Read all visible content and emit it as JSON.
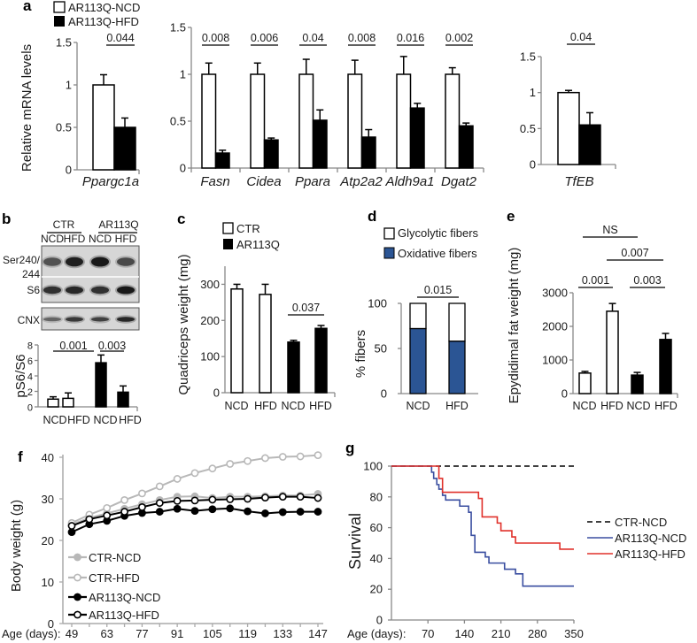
{
  "panel_labels": [
    "a",
    "b",
    "c",
    "d",
    "e",
    "f",
    "g"
  ],
  "blot": {
    "row_labels": [
      "Ser240/",
      "244",
      "S6",
      "CNX"
    ],
    "lane_labels": [
      "NCD",
      "HFD",
      "NCD",
      "HFD"
    ]
  },
  "chart_data": [
    {
      "panel": "a",
      "type": "bar",
      "ylabel": "Relative mRNA levels",
      "categories": [
        "Ppargc1a"
      ],
      "series": [
        {
          "name": "AR113Q-NCD",
          "fill": "#ffffff",
          "values": [
            1.0
          ],
          "errors": [
            0.12
          ]
        },
        {
          "name": "AR113Q-HFD",
          "fill": "#000000",
          "values": [
            0.5
          ],
          "errors": [
            0.11
          ]
        }
      ],
      "pvalues": [
        {
          "label": "0.044",
          "between": [
            0,
            0
          ]
        }
      ],
      "ylim": [
        0,
        1.5
      ],
      "yticks": [
        0,
        0.5,
        1,
        1.5
      ],
      "ytick_labels": [
        "0",
        "0.5",
        "1",
        "1.5"
      ]
    },
    {
      "panel": "a",
      "type": "bar",
      "categories": [
        "Fasn",
        "Cidea",
        "Ppara",
        "Atp2a2",
        "Aldh9a1",
        "Dgat2"
      ],
      "series": [
        {
          "fill": "#ffffff",
          "values": [
            1,
            1,
            1,
            1,
            1,
            1
          ],
          "errors": [
            0.12,
            0.12,
            0.16,
            0.15,
            0.19,
            0.07
          ]
        },
        {
          "fill": "#000000",
          "values": [
            0.16,
            0.3,
            0.51,
            0.33,
            0.64,
            0.45
          ],
          "errors": [
            0.03,
            0.02,
            0.11,
            0.08,
            0.05,
            0.03
          ]
        }
      ],
      "pvalues": [
        {
          "label": "0.008",
          "between": [
            0,
            0
          ]
        },
        {
          "label": "0.006",
          "between": [
            1,
            1
          ]
        },
        {
          "label": "0.04",
          "between": [
            2,
            2
          ]
        },
        {
          "label": "0.008",
          "between": [
            3,
            3
          ]
        },
        {
          "label": "0.016",
          "between": [
            4,
            4
          ]
        },
        {
          "label": "0.002",
          "between": [
            5,
            5
          ]
        }
      ],
      "ylim": [
        0,
        1.5
      ],
      "yticks": [
        0,
        0.5,
        1,
        1.5
      ],
      "ytick_labels": [
        "0",
        "0.5",
        "1",
        "1.5"
      ]
    },
    {
      "panel": "a",
      "type": "bar",
      "categories": [
        "TfEB"
      ],
      "series": [
        {
          "fill": "#ffffff",
          "values": [
            1.0
          ],
          "errors": [
            0.03
          ]
        },
        {
          "fill": "#000000",
          "values": [
            0.55
          ],
          "errors": [
            0.17
          ]
        }
      ],
      "pvalues": [
        {
          "label": "0.04",
          "between": [
            0,
            0
          ]
        }
      ],
      "ylim": [
        0,
        1.5
      ],
      "yticks": [
        0,
        0.5,
        1,
        1.5
      ],
      "ytick_labels": [
        "0",
        "0.5",
        "1",
        "1.5"
      ]
    },
    {
      "panel": "b",
      "type": "bar",
      "ylabel": "pS6/S6",
      "categories": [
        "NCD",
        "HFD",
        "NCD",
        "HFD"
      ],
      "series": [
        {
          "name": "CTR",
          "fill": "#ffffff",
          "values": [
            1.0,
            1.1,
            null,
            null
          ],
          "errors": [
            0.3,
            0.7,
            null,
            null
          ]
        },
        {
          "name": "AR113Q",
          "fill": "#000000",
          "values": [
            null,
            null,
            5.7,
            1.9
          ],
          "errors": [
            null,
            null,
            1.0,
            0.8
          ]
        }
      ],
      "pvalues": [
        {
          "label": "0.001",
          "between": [
            0,
            2
          ]
        },
        {
          "label": "0.003",
          "between": [
            2,
            3
          ]
        }
      ],
      "ylim": [
        0,
        8
      ],
      "yticks": [
        0,
        2,
        4,
        6,
        8
      ],
      "ytick_labels": [
        "0",
        "2",
        "4",
        "6",
        "8"
      ]
    },
    {
      "panel": "c",
      "type": "bar",
      "ylabel": "Quadriceps weight (mg)",
      "categories": [
        "NCD",
        "HFD",
        "NCD",
        "HFD"
      ],
      "series": [
        {
          "name": "CTR",
          "fill": "#ffffff",
          "values": [
            287,
            272,
            null,
            null
          ],
          "errors": [
            13,
            28,
            null,
            null
          ]
        },
        {
          "name": "AR113Q",
          "fill": "#000000",
          "values": [
            null,
            null,
            140,
            178
          ],
          "errors": [
            null,
            null,
            5,
            8
          ]
        }
      ],
      "pvalues": [
        {
          "label": "0.037",
          "between": [
            2,
            3
          ]
        }
      ],
      "ylim": [
        0,
        350
      ],
      "yticks": [
        0,
        100,
        200,
        300
      ],
      "ytick_labels": [
        "0",
        "100",
        "200",
        "300"
      ]
    },
    {
      "panel": "d",
      "type": "bar",
      "stacked": true,
      "ylabel": "% fibers",
      "categories": [
        "NCD",
        "HFD"
      ],
      "series": [
        {
          "name": "Glycolytic fibers",
          "fill": "#ffffff",
          "values": [
            28,
            42
          ]
        },
        {
          "name": "Oxidative fibers",
          "fill": "#2b5594",
          "values": [
            72,
            58
          ]
        }
      ],
      "pvalues": [
        {
          "label": "0.015",
          "between": [
            0,
            1
          ]
        }
      ],
      "ylim": [
        0,
        100
      ],
      "yticks": [
        0,
        50,
        100
      ],
      "ytick_labels": [
        "0",
        "50",
        "100"
      ]
    },
    {
      "panel": "e",
      "type": "bar",
      "ylabel": "Epydidimal fat weight (mg)",
      "categories": [
        "NCD",
        "HFD",
        "NCD",
        "HFD"
      ],
      "series": [
        {
          "fill": "#ffffff",
          "values": [
            610,
            2450,
            null,
            null
          ],
          "errors": [
            50,
            230,
            null,
            null
          ]
        },
        {
          "fill": "#000000",
          "values": [
            null,
            null,
            550,
            1610
          ],
          "errors": [
            null,
            null,
            80,
            180
          ]
        }
      ],
      "pvalues": [
        {
          "label": "NS",
          "between": [
            0,
            2
          ]
        },
        {
          "label": "0.007",
          "between": [
            1,
            3
          ]
        },
        {
          "label": "0.001",
          "between": [
            0,
            1
          ]
        },
        {
          "label": "0.003",
          "between": [
            2,
            3
          ]
        }
      ],
      "ylim": [
        0,
        3000
      ],
      "yticks": [
        0,
        1000,
        2000,
        3000
      ],
      "ytick_labels": [
        "0",
        "1000",
        "2000",
        "3000"
      ]
    },
    {
      "panel": "f",
      "type": "line",
      "ylabel": "Body weight (g)",
      "xlabel": "Age (days):",
      "x": [
        49,
        56,
        63,
        70,
        77,
        84,
        91,
        98,
        105,
        112,
        119,
        126,
        133,
        140,
        147
      ],
      "xticks": [
        49,
        63,
        77,
        91,
        105,
        119,
        133,
        147
      ],
      "xtick_labels": [
        "49",
        "63",
        "77",
        "91",
        "105",
        "119",
        "133",
        "147"
      ],
      "ylim": [
        0,
        40
      ],
      "yticks": [
        0,
        10,
        20,
        30,
        40
      ],
      "ytick_labels": [
        "0",
        "10",
        "20",
        "30",
        "40"
      ],
      "legend_position": "bottom-left",
      "series": [
        {
          "name": "CTR-NCD",
          "color": "#b8b8b8",
          "marker": "filled",
          "values": [
            23.8,
            25.4,
            26.5,
            27.6,
            28.7,
            29.7,
            30.5,
            30.6,
            30.2,
            30.5,
            30.5,
            30.6,
            30.8,
            30.8,
            31.2
          ]
        },
        {
          "name": "CTR-HFD",
          "color": "#b8b8b8",
          "marker": "open",
          "values": [
            24.2,
            26.2,
            27.8,
            29.7,
            31.3,
            33.0,
            34.8,
            36.2,
            37.3,
            38.4,
            39.1,
            39.8,
            40.1,
            40.2,
            40.5
          ]
        },
        {
          "name": "AR113Q-NCD",
          "color": "#000000",
          "marker": "filled",
          "values": [
            22.0,
            23.9,
            24.7,
            25.9,
            26.6,
            26.9,
            27.6,
            27.1,
            27.5,
            27.7,
            27.0,
            26.5,
            26.8,
            26.9,
            26.9
          ]
        },
        {
          "name": "AR113Q-HFD",
          "color": "#000000",
          "marker": "open",
          "values": [
            23.5,
            25.1,
            26.0,
            26.9,
            28.0,
            29.0,
            29.5,
            29.6,
            29.8,
            29.9,
            30.0,
            30.3,
            30.5,
            30.5,
            30.2
          ]
        }
      ]
    },
    {
      "panel": "g",
      "type": "line",
      "ylabel": "Survival",
      "xlabel": "Age (days):",
      "xlim": [
        0,
        350
      ],
      "xticks": [
        70,
        140,
        210,
        280,
        350
      ],
      "xtick_labels": [
        "70",
        "140",
        "210",
        "280",
        "350"
      ],
      "ylim": [
        0,
        100
      ],
      "yticks": [
        0,
        20,
        40,
        60,
        80,
        100
      ],
      "ytick_labels": [
        "0",
        "20",
        "40",
        "60",
        "80",
        "100"
      ],
      "legend_position": "right",
      "series": [
        {
          "name": "CTR-NCD",
          "color": "#000000",
          "dashed": true,
          "steps": [
            [
              0,
              100
            ],
            [
              350,
              100
            ]
          ]
        },
        {
          "name": "AR113Q-NCD",
          "color": "#3a4ea0",
          "steps": [
            [
              0,
              100
            ],
            [
              77,
              96
            ],
            [
              81,
              92
            ],
            [
              87,
              88
            ],
            [
              91,
              85
            ],
            [
              98,
              81
            ],
            [
              104,
              78
            ],
            [
              131,
              74
            ],
            [
              148,
              70
            ],
            [
              153,
              55
            ],
            [
              160,
              44
            ],
            [
              180,
              41
            ],
            [
              187,
              37
            ],
            [
              217,
              33
            ],
            [
              238,
              30
            ],
            [
              252,
              22
            ],
            [
              350,
              22
            ]
          ]
        },
        {
          "name": "AR113Q-HFD",
          "color": "#e0302a",
          "steps": [
            [
              0,
              100
            ],
            [
              91,
              92
            ],
            [
              98,
              83
            ],
            [
              167,
              79
            ],
            [
              174,
              67
            ],
            [
              203,
              63
            ],
            [
              210,
              58
            ],
            [
              231,
              54
            ],
            [
              238,
              50
            ],
            [
              323,
              46
            ],
            [
              350,
              46
            ]
          ]
        }
      ]
    }
  ]
}
